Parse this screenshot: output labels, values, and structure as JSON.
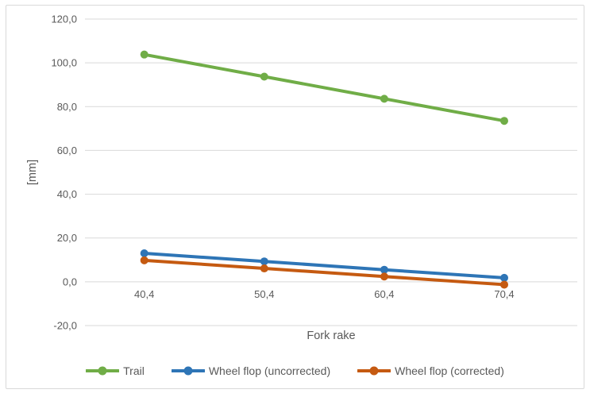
{
  "chart_data": {
    "type": "line",
    "title": "",
    "xlabel": "Fork rake",
    "ylabel": "[mm]",
    "categories": [
      "40,4",
      "50,4",
      "60,4",
      "70,4"
    ],
    "x_values": [
      40.4,
      50.4,
      60.4,
      70.4
    ],
    "series": [
      {
        "name": "Trail",
        "color": "#70AD47",
        "values": [
          103.8,
          93.7,
          83.6,
          73.5
        ]
      },
      {
        "name": "Wheel flop (uncorrected)",
        "color": "#2E75B6",
        "values": [
          13.0,
          9.3,
          5.5,
          1.8
        ]
      },
      {
        "name": "Wheel flop (corrected)",
        "color": "#C55A11",
        "values": [
          9.8,
          6.1,
          2.4,
          -1.3
        ]
      }
    ],
    "ylim": [
      -20,
      120
    ],
    "y_tick_step": 20,
    "y_tick_labels": [
      "120,0",
      "100,0",
      "80,0",
      "60,0",
      "40,0",
      "20,0",
      "0,0",
      "-20,0"
    ],
    "grid": true,
    "legend_position": "bottom",
    "marker": "circle"
  },
  "colors": {
    "background": "#FFFFFF",
    "border": "#D9D9D9",
    "gridline": "#D9D9D9",
    "text": "#595959"
  }
}
